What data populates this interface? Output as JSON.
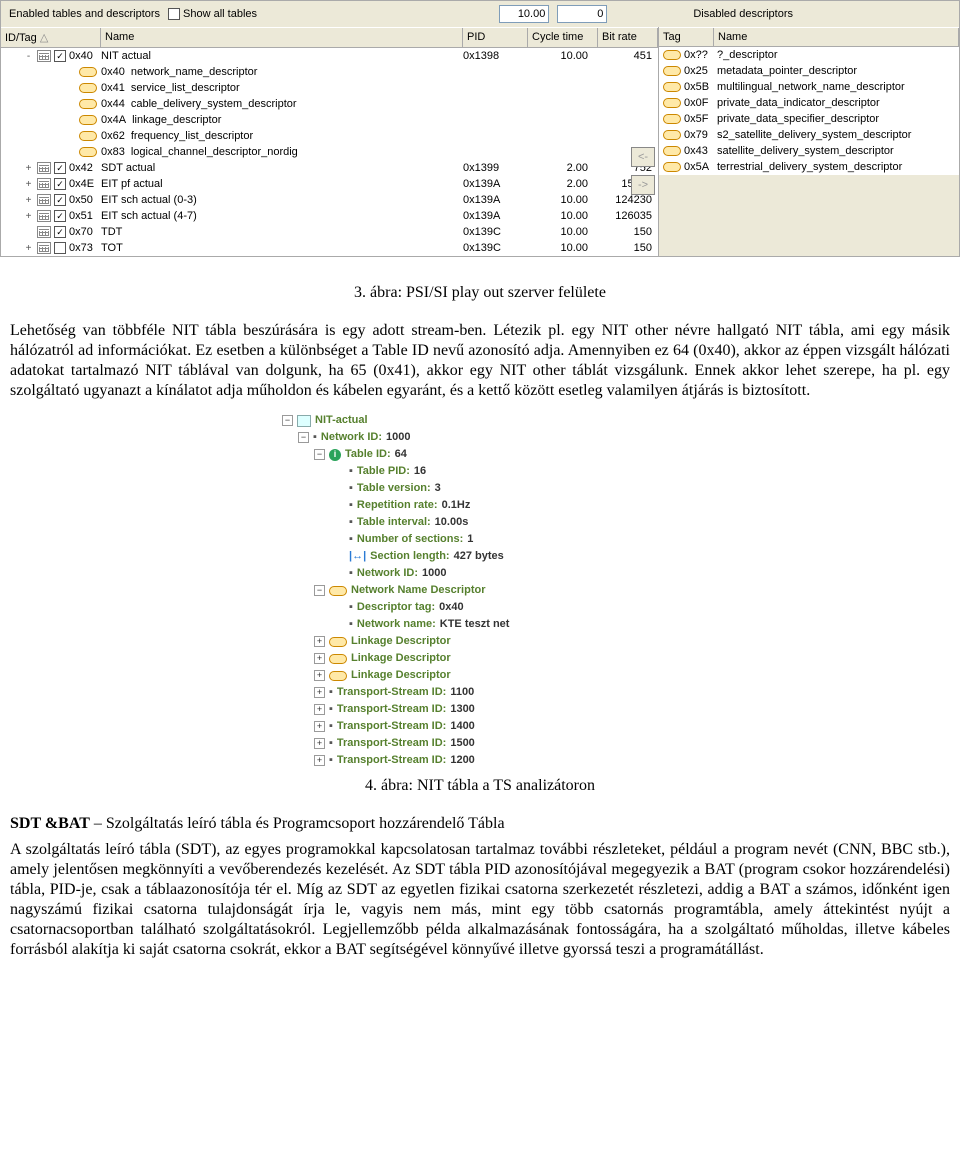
{
  "toolbar": {
    "enabled_label": "Enabled tables and descriptors",
    "showall_label": "Show all tables",
    "num_a": "10.00",
    "num_b": "0",
    "disabled_label": "Disabled descriptors"
  },
  "left_headers": {
    "id": "ID/Tag",
    "name": "Name",
    "pid": "PID",
    "cycle": "Cycle time",
    "bitrate": "Bit rate"
  },
  "right_headers": {
    "tag": "Tag",
    "name": "Name"
  },
  "left_rows": [
    {
      "exp": "-",
      "ck": true,
      "cal": true,
      "id": "0x40",
      "name": "NIT actual",
      "pid": "0x1398",
      "ct": "10.00",
      "br": "451",
      "lvl": "main"
    },
    {
      "desc": true,
      "id": "0x40",
      "name": "network_name_descriptor",
      "lvl": "sub"
    },
    {
      "desc": true,
      "id": "0x41",
      "name": "service_list_descriptor",
      "lvl": "sub"
    },
    {
      "desc": true,
      "id": "0x44",
      "name": "cable_delivery_system_descriptor",
      "lvl": "sub"
    },
    {
      "desc": true,
      "id": "0x4A",
      "name": "linkage_descriptor",
      "lvl": "sub"
    },
    {
      "desc": true,
      "id": "0x62",
      "name": "frequency_list_descriptor",
      "lvl": "sub"
    },
    {
      "desc": true,
      "id": "0x83",
      "name": "logical_channel_descriptor_nordig",
      "lvl": "sub"
    },
    {
      "exp": "+",
      "ck": true,
      "cal": true,
      "id": "0x42",
      "name": "SDT actual",
      "pid": "0x1399",
      "ct": "2.00",
      "br": "752",
      "lvl": "main"
    },
    {
      "exp": "+",
      "ck": true,
      "cal": true,
      "id": "0x4E",
      "name": "EIT pf actual",
      "pid": "0x139A",
      "ct": "2.00",
      "br": "15792",
      "lvl": "main"
    },
    {
      "exp": "+",
      "ck": true,
      "cal": true,
      "id": "0x50",
      "name": "EIT sch actual (0-3)",
      "pid": "0x139A",
      "ct": "10.00",
      "br": "124230",
      "lvl": "main"
    },
    {
      "exp": "+",
      "ck": true,
      "cal": true,
      "id": "0x51",
      "name": "EIT sch actual (4-7)",
      "pid": "0x139A",
      "ct": "10.00",
      "br": "126035",
      "lvl": "main"
    },
    {
      "exp": "",
      "ck": true,
      "cal": true,
      "id": "0x70",
      "name": "TDT",
      "pid": "0x139C",
      "ct": "10.00",
      "br": "150",
      "lvl": "main"
    },
    {
      "exp": "+",
      "ck": false,
      "cal": true,
      "id": "0x73",
      "name": "TOT",
      "pid": "0x139C",
      "ct": "10.00",
      "br": "150",
      "lvl": "main"
    }
  ],
  "right_rows": [
    {
      "tag": "0x??",
      "name": "?_descriptor"
    },
    {
      "tag": "0x25",
      "name": "metadata_pointer_descriptor"
    },
    {
      "tag": "0x5B",
      "name": "multilingual_network_name_descriptor"
    },
    {
      "tag": "0x0F",
      "name": "private_data_indicator_descriptor"
    },
    {
      "tag": "0x5F",
      "name": "private_data_specifier_descriptor"
    },
    {
      "tag": "0x79",
      "name": "s2_satellite_delivery_system_descriptor"
    },
    {
      "tag": "0x43",
      "name": "satellite_delivery_system_descriptor"
    },
    {
      "tag": "0x5A",
      "name": "terrestrial_delivery_system_descriptor"
    }
  ],
  "buttons": {
    "left": "<-",
    "right": "->"
  },
  "caption3": "3. ábra: PSI/SI play out szerver felülete",
  "para1a": "Lehetőség van többféle NIT tábla beszúrására is egy adott stream-ben. Létezik pl. ",
  "para1b": "egy NIT other névre hallgató NIT tábla, ami egy másik hálózatról ad információkat. Ez esetben a különbséget a Table ID nevű azonosító adja. Amennyiben ez 64 (0x40), akkor az éppen vizsgált hálózati adatokat tartalmazó NIT táblával van dolgunk, ha 65 (0x41), akkor egy NIT other táblát vizsgálunk. Ennek akkor lehet szerepe, ha pl. egy szolgáltató ugyanazt a kínálatot adja műholdon és kábelen egyaránt, és a kettő között esetleg valamilyen átjárás is biztosított.",
  "fig4": {
    "title": "NIT-actual",
    "lines": [
      {
        "pad": "pad0",
        "exp": "-",
        "ic": "tbl",
        "t": "NIT-actual"
      },
      {
        "pad": "pad1",
        "exp": "-",
        "t": "Network ID:",
        "v": "1000"
      },
      {
        "pad": "pad2",
        "exp": "-",
        "ic": "info",
        "t": "Table ID:",
        "v": "64"
      },
      {
        "pad": "pad3",
        "t": "Table PID:",
        "v": "16"
      },
      {
        "pad": "pad3",
        "t": "Table version:",
        "v": "3"
      },
      {
        "pad": "pad3",
        "t": "Repetition rate:",
        "v": "0.1Hz"
      },
      {
        "pad": "pad3",
        "t": "Table interval:",
        "v": "10.00s"
      },
      {
        "pad": "pad3",
        "t": "Number of sections:",
        "v": "1"
      },
      {
        "pad": "pad3",
        "len": true,
        "t": "Section length:",
        "v": "427 bytes"
      },
      {
        "pad": "pad3",
        "t": "Network ID:",
        "v": "1000"
      },
      {
        "pad": "pad2",
        "exp": "-",
        "desc": true,
        "t": "Network Name Descriptor"
      },
      {
        "pad": "pad3",
        "t": "Descriptor tag:",
        "v": "0x40"
      },
      {
        "pad": "pad3",
        "t": "Network name:",
        "v": "KTE teszt net"
      },
      {
        "pad": "pad2",
        "exp": "+",
        "desc": true,
        "t": "Linkage Descriptor"
      },
      {
        "pad": "pad2",
        "exp": "+",
        "desc": true,
        "t": "Linkage Descriptor"
      },
      {
        "pad": "pad2",
        "exp": "+",
        "desc": true,
        "t": "Linkage Descriptor"
      },
      {
        "pad": "pad2",
        "exp": "+",
        "t": "Transport-Stream ID:",
        "v": "1100"
      },
      {
        "pad": "pad2",
        "exp": "+",
        "t": "Transport-Stream ID:",
        "v": "1300"
      },
      {
        "pad": "pad2",
        "exp": "+",
        "t": "Transport-Stream ID:",
        "v": "1400"
      },
      {
        "pad": "pad2",
        "exp": "+",
        "t": "Transport-Stream ID:",
        "v": "1500"
      },
      {
        "pad": "pad2",
        "exp": "+",
        "t": "Transport-Stream ID:",
        "v": "1200"
      }
    ]
  },
  "caption4": "4. ábra: NIT tábla a TS analizátoron",
  "heading_sdt_b": "SDT &BAT",
  "heading_sdt_r": " – Szolgáltatás leíró tábla és Programcsoport hozzárendelő Tábla",
  "para2": "A szolgáltatás leíró tábla (SDT), az egyes programokkal kapcsolatosan tartalmaz további részleteket, például a program nevét (CNN, BBC stb.), amely jelentősen megkönnyíti a vevőberendezés kezelését. Az SDT tábla PID azonosítójával megegyezik a BAT (program csokor hozzárendelési) tábla, PID-je, csak a táblaazonosítója tér el. Míg az SDT az egyetlen fizikai csatorna szerkezetét részletezi, addig a BAT a számos, időnként igen nagyszámú fizikai csatorna tulajdonságát írja le, vagyis nem más, mint egy több csatornás programtábla, amely áttekintést nyújt a csatornacsoportban található szolgáltatásokról. Legjellemzőbb példa alkalmazásának fontosságára, ha a szolgáltató műholdas, illetve kábeles forrásból alakítja ki saját csatorna csokrát, ekkor a BAT segítségével könnyűvé illetve gyorssá teszi a programátállást."
}
